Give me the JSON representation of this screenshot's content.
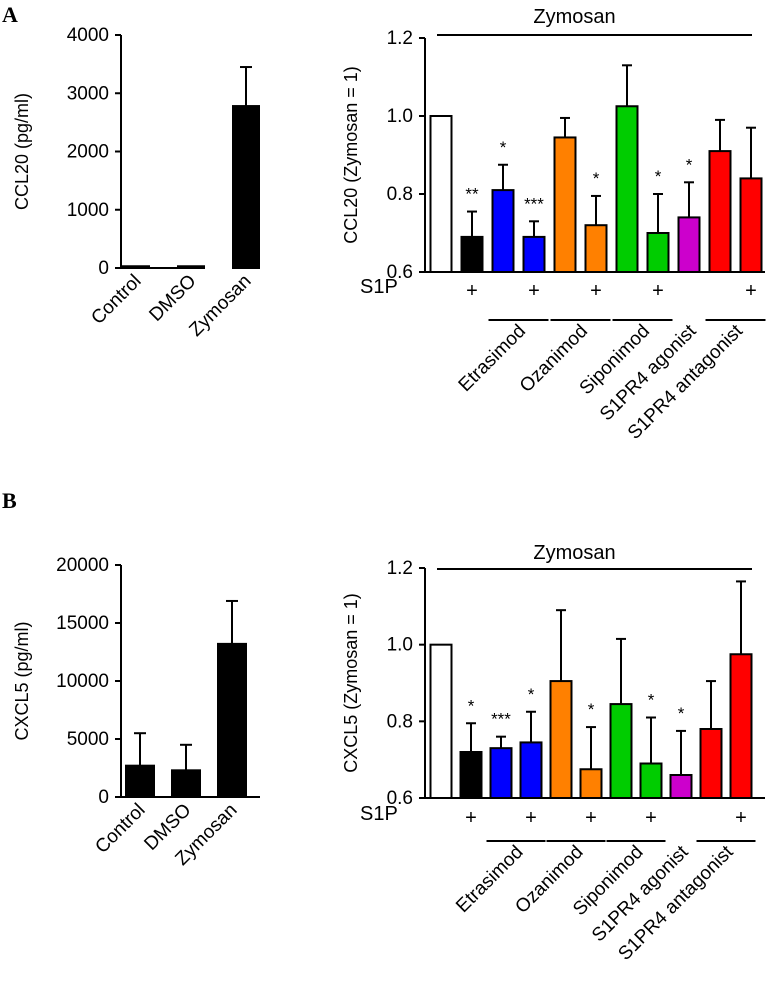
{
  "panels": {
    "a": "A",
    "b": "B"
  },
  "chart_data": [
    {
      "id": "A-left",
      "type": "bar",
      "categories": [
        "Control",
        "DMSO",
        "Zymosan"
      ],
      "values": [
        30,
        30,
        2780
      ],
      "errors": [
        0,
        0,
        670
      ],
      "colors": [
        "#000000",
        "#000000",
        "#000000"
      ],
      "ylabel": "CCL20 (pg/ml)",
      "ylim": [
        0,
        4000
      ],
      "yticks": [
        0,
        1000,
        2000,
        3000,
        4000
      ],
      "ytick_labels": [
        "0",
        "1000",
        "2000",
        "3000",
        "4000"
      ]
    },
    {
      "id": "A-right",
      "type": "bar",
      "categories": [
        "Zymosan",
        "S1P",
        "Etrasimod",
        "Etrasimod + S1P",
        "Ozanimod",
        "Ozanimod + S1P",
        "Siponimod",
        "Siponimod + S1P",
        "S1PR4 agonist",
        "S1PR4 antagonist",
        "S1PR4 antagonist + S1P"
      ],
      "values": [
        1.0,
        0.69,
        0.81,
        0.69,
        0.945,
        0.72,
        1.025,
        0.7,
        0.74,
        0.91,
        0.84
      ],
      "errors": [
        0,
        0.065,
        0.065,
        0.04,
        0.05,
        0.075,
        0.105,
        0.1,
        0.09,
        0.08,
        0.13
      ],
      "colors": [
        "#ffffff",
        "#000000",
        "#0000ff",
        "#0000ff",
        "#ff8000",
        "#ff8000",
        "#00cc00",
        "#00cc00",
        "#cc00cc",
        "#ff0000",
        "#ff0000"
      ],
      "significance": [
        "",
        "**",
        "*",
        "***",
        "",
        "*",
        "",
        "*",
        "*",
        "",
        ""
      ],
      "ylabel": "CCL20 (Zymosan = 1)",
      "ylim": [
        0.6,
        1.2
      ],
      "yticks": [
        0.6,
        0.8,
        1.0,
        1.2
      ],
      "ytick_labels": [
        "0.6",
        "0.8",
        "1.0",
        "1.2"
      ],
      "top_label": "Zymosan",
      "s1p_label": "S1P",
      "plus_sign": "+",
      "plus_positions": [
        1,
        3,
        5,
        7,
        10
      ],
      "groups": [
        {
          "label": "Etrasimod",
          "bars": [
            2,
            3
          ]
        },
        {
          "label": "Ozanimod",
          "bars": [
            4,
            5
          ]
        },
        {
          "label": "Siponimod",
          "bars": [
            6,
            7
          ]
        },
        {
          "label": "S1PR4 agonist",
          "bars": [
            8,
            8
          ]
        },
        {
          "label": "S1PR4 antagonist",
          "bars": [
            9,
            10
          ]
        }
      ]
    },
    {
      "id": "B-left",
      "type": "bar",
      "categories": [
        "Control",
        "DMSO",
        "Zymosan"
      ],
      "values": [
        2700,
        2300,
        13200
      ],
      "errors": [
        2800,
        2200,
        3700
      ],
      "colors": [
        "#000000",
        "#000000",
        "#000000"
      ],
      "ylabel": "CXCL5 (pg/ml)",
      "ylim": [
        0,
        20000
      ],
      "yticks": [
        0,
        5000,
        10000,
        15000,
        20000
      ],
      "ytick_labels": [
        "0",
        "5000",
        "10000",
        "15000",
        "20000"
      ]
    },
    {
      "id": "B-right",
      "type": "bar",
      "categories": [
        "Zymosan",
        "S1P",
        "Etrasimod",
        "Etrasimod + S1P",
        "Ozanimod",
        "Ozanimod + S1P",
        "Siponimod",
        "Siponimod + S1P",
        "S1PR4 agonist",
        "S1PR4 antagonist",
        "S1PR4 antagonist + S1P"
      ],
      "values": [
        1.0,
        0.72,
        0.73,
        0.745,
        0.905,
        0.675,
        0.845,
        0.69,
        0.66,
        0.78,
        0.975
      ],
      "errors": [
        0,
        0.075,
        0.03,
        0.08,
        0.185,
        0.11,
        0.17,
        0.12,
        0.115,
        0.125,
        0.19
      ],
      "colors": [
        "#ffffff",
        "#000000",
        "#0000ff",
        "#0000ff",
        "#ff8000",
        "#ff8000",
        "#00cc00",
        "#00cc00",
        "#cc00cc",
        "#ff0000",
        "#ff0000"
      ],
      "significance": [
        "",
        "*",
        "***",
        "*",
        "",
        "*",
        "",
        "*",
        "*",
        "",
        ""
      ],
      "ylabel": "CXCL5 (Zymosan = 1)",
      "ylim": [
        0.6,
        1.2
      ],
      "yticks": [
        0.6,
        0.8,
        1.0,
        1.2
      ],
      "ytick_labels": [
        "0.6",
        "0.8",
        "1.0",
        "1.2"
      ],
      "top_label": "Zymosan",
      "s1p_label": "S1P",
      "plus_sign": "+",
      "plus_positions": [
        1,
        3,
        5,
        7,
        10
      ],
      "groups": [
        {
          "label": "Etrasimod",
          "bars": [
            2,
            3
          ]
        },
        {
          "label": "Ozanimod",
          "bars": [
            4,
            5
          ]
        },
        {
          "label": "Siponimod",
          "bars": [
            6,
            7
          ]
        },
        {
          "label": "S1PR4 agonist",
          "bars": [
            8,
            8
          ]
        },
        {
          "label": "S1PR4 antagonist",
          "bars": [
            9,
            10
          ]
        }
      ]
    }
  ]
}
